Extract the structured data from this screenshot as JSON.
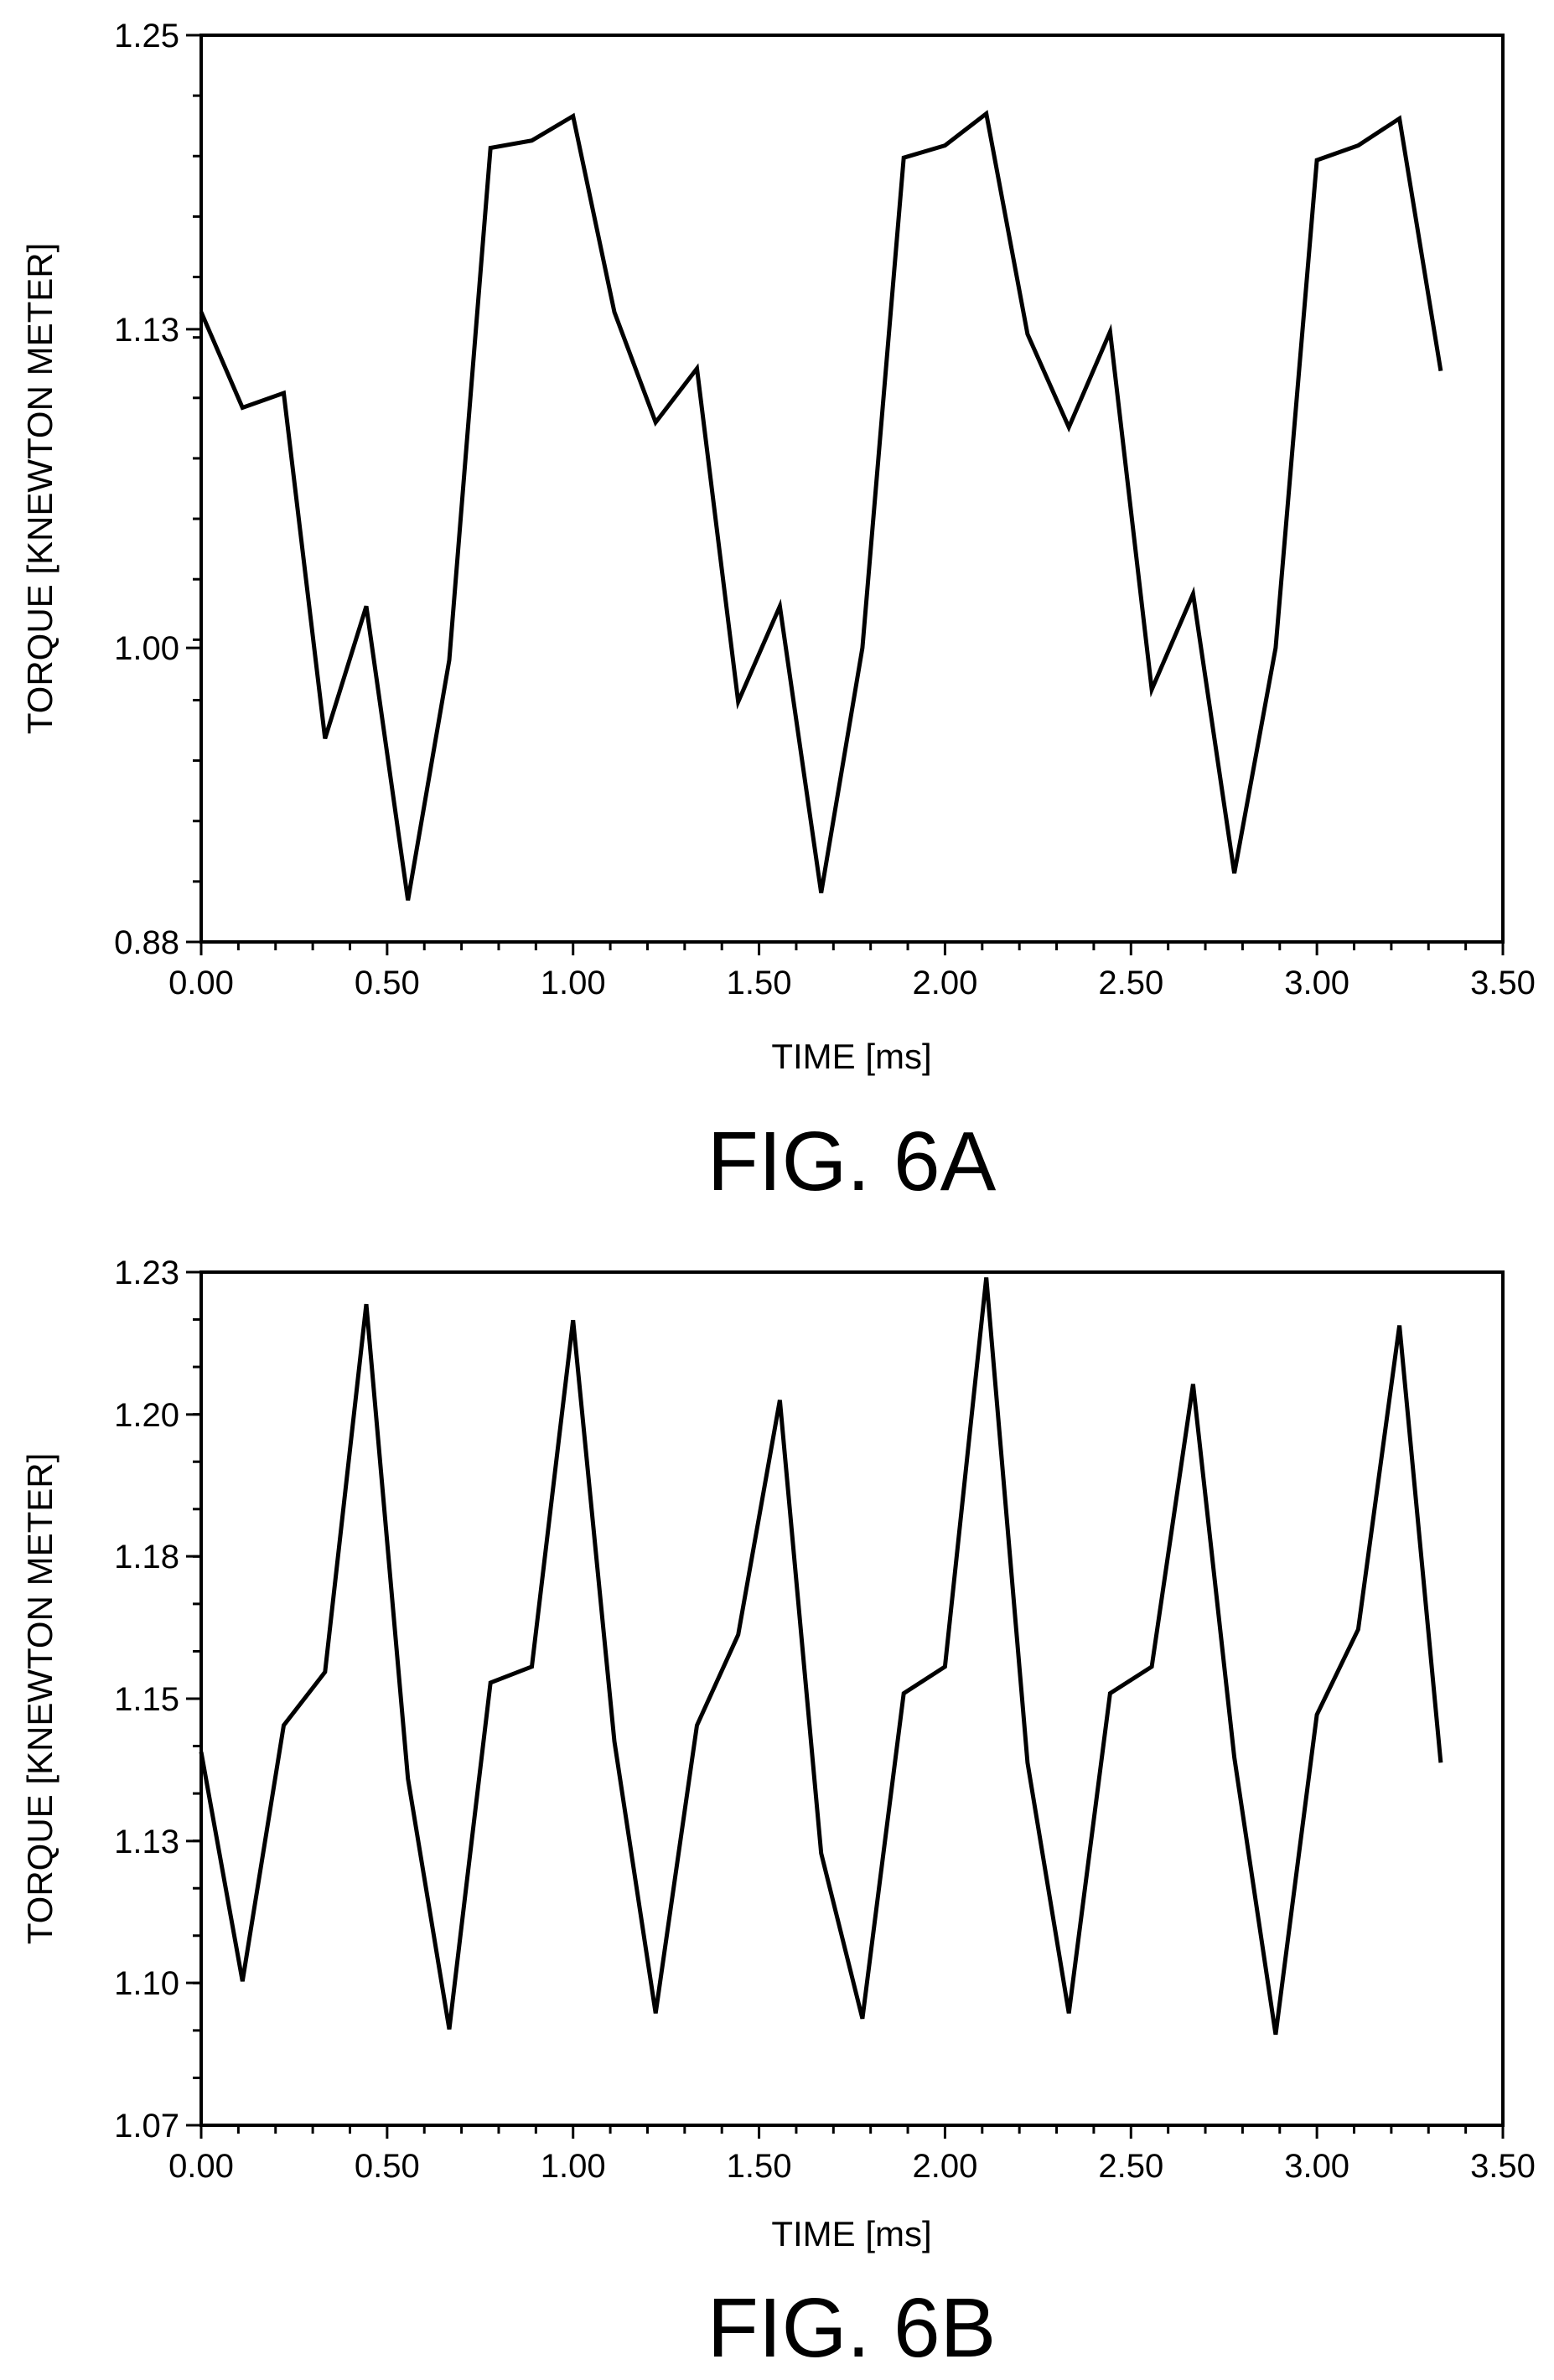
{
  "colors": {
    "background": "#ffffff",
    "ink": "#000000"
  },
  "chart_data": [
    {
      "type": "line",
      "figure_label": "FIG. 6A",
      "xlabel": "TIME [ms]",
      "ylabel": "TORQUE [KNEWTON METER]",
      "xlim": [
        0.0,
        3.5
      ],
      "ylim": [
        0.88,
        1.25
      ],
      "x_ticks": [
        "0.00",
        "0.50",
        "1.00",
        "1.50",
        "2.00",
        "2.50",
        "3.00",
        "3.50"
      ],
      "y_ticks": [
        "0.88",
        "1.00",
        "1.13",
        "1.25"
      ],
      "x_tick_values": [
        0.0,
        0.5,
        1.0,
        1.5,
        2.0,
        2.5,
        3.0,
        3.5
      ],
      "y_tick_values": [
        0.88,
        1.0,
        1.13,
        1.25
      ],
      "x_minor_step": 0.1,
      "y_minor_count": 15,
      "grid": false,
      "series": [
        {
          "x": [
            0.0,
            0.111,
            0.222,
            0.333,
            0.444,
            0.556,
            0.667,
            0.778,
            0.889,
            1.0,
            1.111,
            1.222,
            1.333,
            1.444,
            1.556,
            1.667,
            1.778,
            1.889,
            2.0,
            2.111,
            2.222,
            2.333,
            2.444,
            2.556,
            2.667,
            2.778,
            2.889,
            3.0,
            3.111,
            3.222,
            3.333
          ],
          "values": [
            1.137,
            1.098,
            1.104,
            0.963,
            1.017,
            0.897,
            0.995,
            1.204,
            1.207,
            1.217,
            1.137,
            1.092,
            1.114,
            0.978,
            1.017,
            0.9,
            1.0,
            1.2,
            1.205,
            1.218,
            1.128,
            1.09,
            1.129,
            0.983,
            1.022,
            0.908,
            1.0,
            1.199,
            1.205,
            1.216,
            1.113
          ]
        }
      ]
    },
    {
      "type": "line",
      "figure_label": "FIG. 6B",
      "xlabel": "TIME [ms]",
      "ylabel": "TORQUE [KNEWTON METER]",
      "xlim": [
        0.0,
        3.5
      ],
      "ylim": [
        1.07,
        1.23
      ],
      "x_ticks": [
        "0.00",
        "0.50",
        "1.00",
        "1.50",
        "2.00",
        "2.50",
        "3.00",
        "3.50"
      ],
      "y_ticks": [
        "1.07",
        "1.10",
        "1.13",
        "1.15",
        "1.18",
        "1.20",
        "1.23"
      ],
      "x_tick_values": [
        0.0,
        0.5,
        1.0,
        1.5,
        2.0,
        2.5,
        3.0,
        3.5
      ],
      "y_tick_values": [
        1.07,
        1.0967,
        1.1233,
        1.15,
        1.1767,
        1.2033,
        1.23
      ],
      "x_minor_step": 0.1,
      "y_minor_count": 18,
      "grid": false,
      "series": [
        {
          "x": [
            0.0,
            0.111,
            0.222,
            0.333,
            0.444,
            0.556,
            0.667,
            0.778,
            0.889,
            1.0,
            1.111,
            1.222,
            1.333,
            1.444,
            1.556,
            1.667,
            1.778,
            1.889,
            2.0,
            2.111,
            2.222,
            2.333,
            2.444,
            2.556,
            2.667,
            2.778,
            2.889,
            3.0,
            3.111,
            3.222,
            3.333
          ],
          "values": [
            1.14,
            1.097,
            1.145,
            1.155,
            1.224,
            1.135,
            1.088,
            1.153,
            1.156,
            1.221,
            1.142,
            1.091,
            1.145,
            1.162,
            1.206,
            1.121,
            1.09,
            1.151,
            1.156,
            1.229,
            1.138,
            1.091,
            1.151,
            1.156,
            1.209,
            1.139,
            1.087,
            1.147,
            1.163,
            1.22,
            1.138
          ]
        }
      ]
    }
  ]
}
